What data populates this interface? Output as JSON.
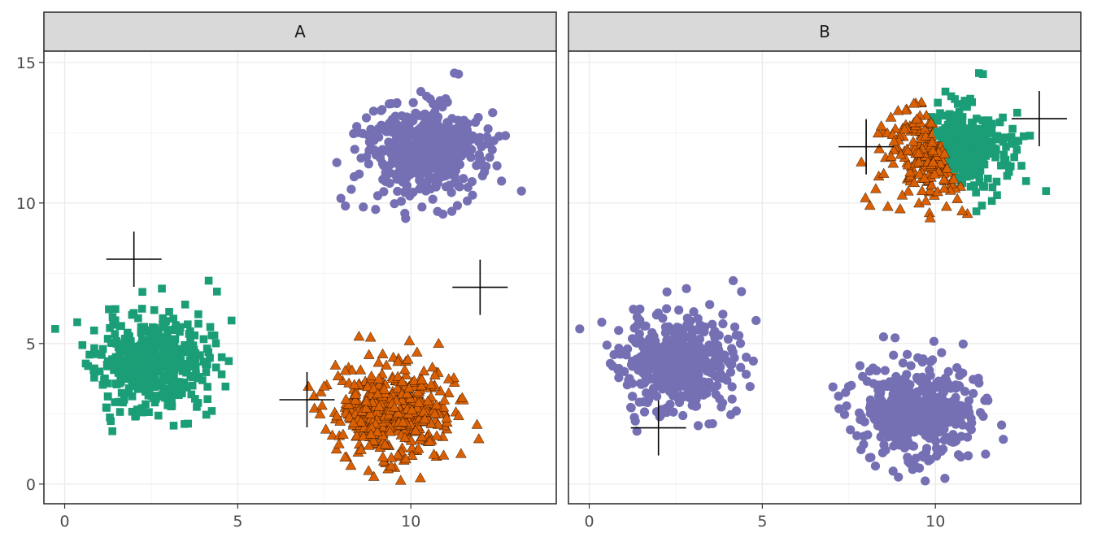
{
  "chart_data": {
    "type": "scatter",
    "title": "",
    "xlabel": "",
    "ylabel": "",
    "xlim": [
      -0.6,
      14.2
    ],
    "ylim": [
      -0.7,
      15.4
    ],
    "x_ticks": [
      0,
      5,
      10
    ],
    "y_ticks": [
      0,
      5,
      10,
      15
    ],
    "x_tick_labels": [
      "0",
      "5",
      "10"
    ],
    "y_tick_labels": [
      "0",
      "5",
      "10",
      "15"
    ],
    "grid": true,
    "legend": "none",
    "colors": {
      "purple": "#7570b3",
      "green": "#1b9e77",
      "orange": "#d95f02",
      "centroid": "#000000"
    },
    "panels": [
      {
        "label": "A",
        "clusters": [
          {
            "center": [
              2.5,
              4.3
            ],
            "sd": [
              0.8,
              0.85
            ],
            "n": 450,
            "shape": "square",
            "color": "#1b9e77",
            "seed": 11
          },
          {
            "center": [
              10.3,
              11.8
            ],
            "sd": [
              0.85,
              0.85
            ],
            "n": 450,
            "shape": "circle",
            "color": "#7570b3",
            "seed": 23
          },
          {
            "center": [
              9.5,
              2.6
            ],
            "sd": [
              0.85,
              0.85
            ],
            "n": 450,
            "shape": "triangle",
            "color": "#d95f02",
            "seed": 37
          }
        ],
        "centroids": [
          [
            2,
            8
          ],
          [
            12,
            7
          ],
          [
            7,
            3
          ]
        ]
      },
      {
        "label": "B",
        "clusters": [
          {
            "center": [
              2.5,
              4.3
            ],
            "sd": [
              0.8,
              0.85
            ],
            "n": 450,
            "shape": "circle",
            "color": "#7570b3",
            "seed": 11
          },
          {
            "center": [
              9.5,
              2.6
            ],
            "sd": [
              0.85,
              0.85
            ],
            "n": 450,
            "shape": "circle",
            "color": "#7570b3",
            "seed": 37
          },
          {
            "center": [
              10.3,
              11.8
            ],
            "sd": [
              0.85,
              0.85
            ],
            "n": 450,
            "shape": "split",
            "color": "#1b9e77",
            "alt_color": "#d95f02",
            "split_x": 10.3,
            "seed": 23
          }
        ],
        "centroids": [
          [
            2,
            2
          ],
          [
            8,
            12
          ],
          [
            13,
            13
          ]
        ]
      }
    ]
  }
}
